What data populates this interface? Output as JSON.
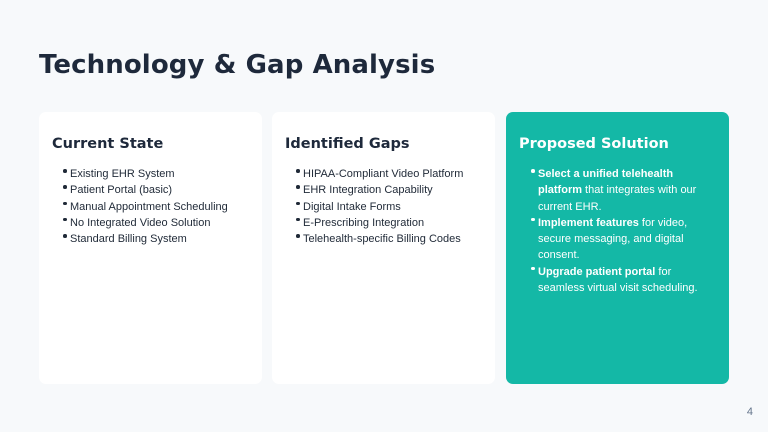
{
  "slide": {
    "title": "Technology & Gap Analysis",
    "page_number": "4"
  },
  "current_state": {
    "heading": "Current State",
    "items": [
      "Existing EHR System",
      "Patient Portal (basic)",
      "Manual Appointment Scheduling",
      "No Integrated Video Solution",
      "Standard Billing System"
    ]
  },
  "identified_gaps": {
    "heading": "Identified Gaps",
    "items": [
      "HIPAA-Compliant Video Platform",
      "EHR Integration Capability",
      "Digital Intake Forms",
      "E-Prescribing Integration",
      "Telehealth-specific Billing Codes"
    ]
  },
  "proposed_solution": {
    "heading": "Proposed Solution",
    "items": [
      {
        "bold": "Select a unified telehealth platform",
        "text": " that integrates with our current EHR."
      },
      {
        "bold": "Implement features",
        "text": " for video, secure messaging, and digital consent."
      },
      {
        "bold": "Upgrade patient portal",
        "text": " for seamless virtual visit scheduling."
      }
    ]
  },
  "colors": {
    "background": "#f7f9fb",
    "card": "#ffffff",
    "accent": "#14b8a6",
    "title_text": "#1e293b"
  }
}
